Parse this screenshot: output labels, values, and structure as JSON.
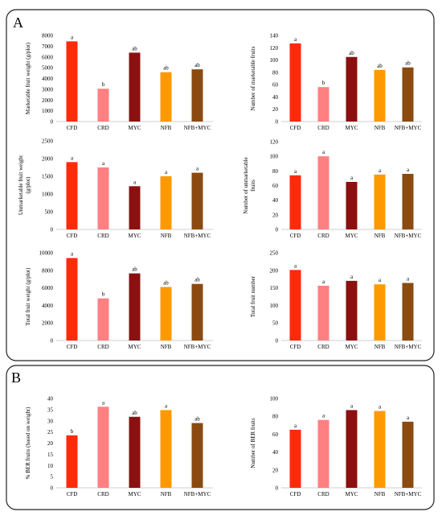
{
  "panels": [
    {
      "letter": "A"
    },
    {
      "letter": "B"
    }
  ],
  "colors": {
    "CFD": "#ff2a0a",
    "CRD": "#ff8080",
    "MYC": "#8b1111",
    "NFB": "#ff9900",
    "NFB+MYC": "#8b4a10"
  },
  "chart_data": [
    {
      "type": "bar",
      "panel": "A",
      "categories": [
        "CFD",
        "CRD",
        "MYC",
        "NFB",
        "NFB+MYC"
      ],
      "values": [
        7450,
        3050,
        6400,
        4580,
        4850
      ],
      "letters": [
        "a",
        "b",
        "ab",
        "ab",
        "ab"
      ],
      "ylabel": "Marketable fruit weight (g/plot)",
      "ylim": [
        0,
        8000
      ],
      "yticks": [
        0,
        1000,
        2000,
        3000,
        4000,
        5000,
        6000,
        7000,
        8000
      ]
    },
    {
      "type": "bar",
      "panel": "A",
      "categories": [
        "CFD",
        "CRD",
        "MYC",
        "NFB",
        "NFB+MYC"
      ],
      "values": [
        127,
        56,
        105,
        84,
        88
      ],
      "letters": [
        "a",
        "b",
        "ab",
        "ab",
        "ab"
      ],
      "ylabel": "Number of marketable fruits",
      "ylim": [
        0,
        140
      ],
      "yticks": [
        0,
        20,
        40,
        60,
        80,
        100,
        120,
        140
      ]
    },
    {
      "type": "bar",
      "panel": "A",
      "categories": [
        "CFD",
        "CRD",
        "MYC",
        "NFB",
        "NFB+MYC"
      ],
      "values": [
        1900,
        1750,
        1220,
        1500,
        1600
      ],
      "letters": [
        "a",
        "a",
        "a",
        "a",
        "a"
      ],
      "ylabel": [
        "Unmarketable fruit weight",
        "(g/plot)"
      ],
      "ylim": [
        0,
        2500
      ],
      "yticks": [
        0,
        500,
        1000,
        1500,
        2000,
        2500
      ]
    },
    {
      "type": "bar",
      "panel": "A",
      "categories": [
        "CFD",
        "CRD",
        "MYC",
        "NFB",
        "NFB+MYC"
      ],
      "values": [
        74,
        100,
        65,
        75,
        76
      ],
      "letters": [
        "a",
        "a",
        "a",
        "a",
        "a"
      ],
      "ylabel": [
        "Number of unmarketable",
        "fruits"
      ],
      "ylim": [
        0,
        120
      ],
      "yticks": [
        0,
        20,
        40,
        60,
        80,
        100,
        120
      ]
    },
    {
      "type": "bar",
      "panel": "A",
      "categories": [
        "CFD",
        "CRD",
        "MYC",
        "NFB",
        "NFB+MYC"
      ],
      "values": [
        9400,
        4800,
        7650,
        6100,
        6450
      ],
      "letters": [
        "a",
        "b",
        "ab",
        "ab",
        "ab"
      ],
      "ylabel": "Total fruit weight (g/plot)",
      "ylim": [
        0,
        10000
      ],
      "yticks": [
        0,
        2000,
        4000,
        6000,
        8000,
        10000
      ]
    },
    {
      "type": "bar",
      "panel": "A",
      "categories": [
        "CFD",
        "CRD",
        "MYC",
        "NFB",
        "NFB+MYC"
      ],
      "values": [
        201,
        156,
        170,
        160,
        164
      ],
      "letters": [
        "a",
        "a",
        "a",
        "a",
        "a"
      ],
      "ylabel": "Total fruit number",
      "ylim": [
        0,
        250
      ],
      "yticks": [
        0,
        50,
        100,
        150,
        200,
        250
      ]
    },
    {
      "type": "bar",
      "panel": "B",
      "categories": [
        "CFD",
        "CRD",
        "MYC",
        "NFB",
        "NFB+MYC"
      ],
      "values": [
        23.5,
        36.3,
        31.8,
        34.8,
        29
      ],
      "letters": [
        "b",
        "a",
        "ab",
        "a",
        "ab"
      ],
      "ylabel": "% BER fruits (based on weight)",
      "ylim": [
        0,
        40
      ],
      "yticks": [
        0,
        5,
        10,
        15,
        20,
        25,
        30,
        35,
        40
      ]
    },
    {
      "type": "bar",
      "panel": "B",
      "categories": [
        "CFD",
        "CRD",
        "MYC",
        "NFB",
        "NFB+MYC"
      ],
      "values": [
        65,
        76,
        87,
        86,
        74
      ],
      "letters": [
        "a",
        "a",
        "a",
        "a",
        "a"
      ],
      "ylabel": "Number of BER fruits",
      "ylim": [
        0,
        100
      ],
      "yticks": [
        0,
        20,
        40,
        60,
        80,
        100
      ]
    }
  ]
}
